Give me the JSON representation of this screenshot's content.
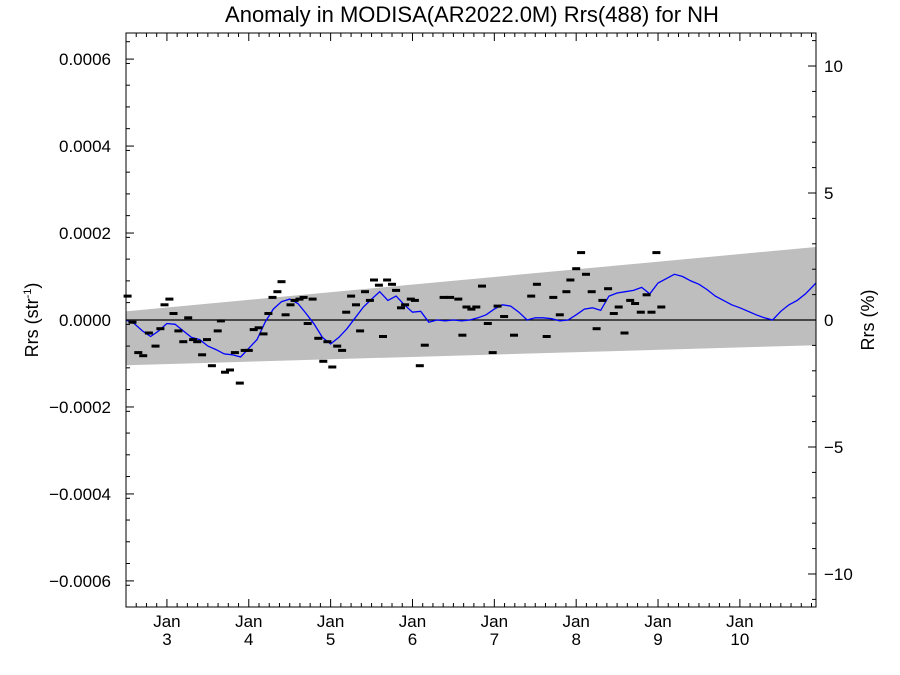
{
  "chart_data": {
    "type": "scatter",
    "title": "Anomaly in MODISA(AR2022.0M) Rrs(488) for NH",
    "ylabel": "Rrs (str",
    "ylabel_sup": "-1",
    "ylabel_close": ")",
    "y2label": "Rrs (%)",
    "xlim": [
      2.5,
      10.93
    ],
    "ylim": [
      -0.00066,
      0.00066
    ],
    "y2lim": [
      -11.3,
      11.3
    ],
    "grid": false,
    "yticks": [
      {
        "v": 0.0006,
        "label": "0.0006"
      },
      {
        "v": 0.0004,
        "label": "0.0004"
      },
      {
        "v": 0.0002,
        "label": "0.0002"
      },
      {
        "v": 0.0,
        "label": "0.0000"
      },
      {
        "v": -0.0002,
        "label": "−0.0002"
      },
      {
        "v": -0.0004,
        "label": "−0.0004"
      },
      {
        "v": -0.0006,
        "label": "−0.0006"
      }
    ],
    "y2ticks": [
      {
        "v": 10,
        "label": "10"
      },
      {
        "v": 5,
        "label": "5"
      },
      {
        "v": 0,
        "label": "0"
      },
      {
        "v": -5,
        "label": "−5"
      },
      {
        "v": -10,
        "label": "−10"
      }
    ],
    "xticks": [
      {
        "v": 3,
        "top": "Jan",
        "bottom": "3"
      },
      {
        "v": 4,
        "top": "Jan",
        "bottom": "4"
      },
      {
        "v": 5,
        "top": "Jan",
        "bottom": "5"
      },
      {
        "v": 6,
        "top": "Jan",
        "bottom": "6"
      },
      {
        "v": 7,
        "top": "Jan",
        "bottom": "7"
      },
      {
        "v": 8,
        "top": "Jan",
        "bottom": "8"
      },
      {
        "v": 9,
        "top": "Jan",
        "bottom": "9"
      },
      {
        "v": 10,
        "top": "Jan",
        "bottom": "10"
      }
    ],
    "band": {
      "x": [
        2.5,
        10.93
      ],
      "upper": [
        2e-05,
        0.000168
      ],
      "lower": [
        -0.000104,
        -5.8e-05
      ],
      "color": "#bebebe"
    },
    "series": [
      {
        "style": "points",
        "color": "#000000",
        "points": [
          [
            2.52,
            5.5e-05
          ],
          [
            2.58,
            -5e-06
          ],
          [
            2.65,
            -7.5e-05
          ],
          [
            2.71,
            -8.2e-05
          ],
          [
            2.78,
            -3e-05
          ],
          [
            2.86,
            -6e-05
          ],
          [
            2.92,
            -2e-05
          ],
          [
            2.97,
            3.5e-05
          ],
          [
            3.03,
            4.8e-05
          ],
          [
            3.08,
            1.5e-05
          ],
          [
            3.14,
            -2.5e-05
          ],
          [
            3.2,
            -5e-05
          ],
          [
            3.26,
            5e-06
          ],
          [
            3.32,
            -4.5e-05
          ],
          [
            3.37,
            -5e-05
          ],
          [
            3.43,
            -8e-05
          ],
          [
            3.49,
            -4.5e-05
          ],
          [
            3.55,
            -0.000105
          ],
          [
            3.62,
            -2.5e-05
          ],
          [
            3.66,
            -2e-06
          ],
          [
            3.71,
            -0.00012
          ],
          [
            3.77,
            -0.000115
          ],
          [
            3.83,
            -7.5e-05
          ],
          [
            3.89,
            -0.000145
          ],
          [
            3.95,
            -7e-05
          ],
          [
            4.0,
            -7e-05
          ],
          [
            4.06,
            -2.2e-05
          ],
          [
            4.12,
            -1.8e-05
          ],
          [
            4.18,
            -3.2e-05
          ],
          [
            4.24,
            1.5e-05
          ],
          [
            4.29,
            5.2e-05
          ],
          [
            4.35,
            6.5e-05
          ],
          [
            4.4,
            8.8e-05
          ],
          [
            4.45,
            1.2e-05
          ],
          [
            4.51,
            3.5e-05
          ],
          [
            4.56,
            4.5e-05
          ],
          [
            4.62,
            4.8e-05
          ],
          [
            4.67,
            5.2e-05
          ],
          [
            4.72,
            -8e-06
          ],
          [
            4.78,
            4.8e-05
          ],
          [
            4.85,
            -4.2e-05
          ],
          [
            4.91,
            -9.5e-05
          ],
          [
            4.96,
            -5e-05
          ],
          [
            5.02,
            -0.000108
          ],
          [
            5.08,
            -6e-05
          ],
          [
            5.14,
            -7e-05
          ],
          [
            5.19,
            1.8e-05
          ],
          [
            5.25,
            5.5e-05
          ],
          [
            5.31,
            3.5e-05
          ],
          [
            5.36,
            -2.5e-05
          ],
          [
            5.42,
            6.5e-05
          ],
          [
            5.48,
            4.5e-05
          ],
          [
            5.53,
            9.2e-05
          ],
          [
            5.59,
            8e-05
          ],
          [
            5.64,
            -3.8e-05
          ],
          [
            5.69,
            9.2e-05
          ],
          [
            5.75,
            8.2e-05
          ],
          [
            5.8,
            6.8e-05
          ],
          [
            5.86,
            2.8e-05
          ],
          [
            5.91,
            3.5e-05
          ],
          [
            5.98,
            4.8e-05
          ],
          [
            6.03,
            4.5e-05
          ],
          [
            6.09,
            -0.000105
          ],
          [
            6.15,
            -5.8e-05
          ],
          [
            6.38,
            5.2e-05
          ],
          [
            6.46,
            5.2e-05
          ],
          [
            6.56,
            4.8e-05
          ],
          [
            6.61,
            -3.5e-05
          ],
          [
            6.66,
            3e-05
          ],
          [
            6.72,
            2.5e-05
          ],
          [
            6.78,
            3e-05
          ],
          [
            6.85,
            7.8e-05
          ],
          [
            6.92,
            -8e-06
          ],
          [
            6.98,
            -7.5e-05
          ],
          [
            7.04,
            3.2e-05
          ],
          [
            7.12,
            8e-06
          ],
          [
            7.24,
            -3.5e-05
          ],
          [
            7.45,
            5.5e-05
          ],
          [
            7.52,
            8.2e-05
          ],
          [
            7.64,
            -3.8e-05
          ],
          [
            7.72,
            5.2e-05
          ],
          [
            7.8,
            1.2e-05
          ],
          [
            7.88,
            6.5e-05
          ],
          [
            7.93,
            9.2e-05
          ],
          [
            8.0,
            0.000118
          ],
          [
            8.06,
            0.000155
          ],
          [
            8.12,
            0.000105
          ],
          [
            8.19,
            6.5e-05
          ],
          [
            8.25,
            -2e-05
          ],
          [
            8.32,
            4.5e-05
          ],
          [
            8.39,
            7.2e-05
          ],
          [
            8.46,
            1.5e-05
          ],
          [
            8.52,
            3e-05
          ],
          [
            8.59,
            -3e-05
          ],
          [
            8.66,
            4.5e-05
          ],
          [
            8.72,
            3.8e-05
          ],
          [
            8.79,
            1.8e-05
          ],
          [
            8.86,
            5.8e-05
          ],
          [
            8.92,
            1.8e-05
          ],
          [
            8.98,
            0.000155
          ],
          [
            9.04,
            3e-05
          ]
        ]
      },
      {
        "style": "line",
        "color": "#0000ff",
        "points": [
          [
            2.5,
            0.0
          ],
          [
            2.6,
            -8e-06
          ],
          [
            2.7,
            -2.5e-05
          ],
          [
            2.8,
            -3.8e-05
          ],
          [
            2.9,
            -2.5e-05
          ],
          [
            3.0,
            -8e-06
          ],
          [
            3.1,
            -1e-05
          ],
          [
            3.2,
            -2.5e-05
          ],
          [
            3.3,
            -4e-05
          ],
          [
            3.4,
            -4.5e-05
          ],
          [
            3.5,
            -6e-05
          ],
          [
            3.6,
            -6.8e-05
          ],
          [
            3.7,
            -7.8e-05
          ],
          [
            3.8,
            -8e-05
          ],
          [
            3.9,
            -8.5e-05
          ],
          [
            4.0,
            -6.5e-05
          ],
          [
            4.1,
            -4.5e-05
          ],
          [
            4.2,
            -5e-06
          ],
          [
            4.3,
            2.5e-05
          ],
          [
            4.4,
            4.2e-05
          ],
          [
            4.5,
            4.8e-05
          ],
          [
            4.6,
            3.8e-05
          ],
          [
            4.7,
            1.5e-05
          ],
          [
            4.8,
            -1e-05
          ],
          [
            4.9,
            -4e-05
          ],
          [
            5.0,
            -5.5e-05
          ],
          [
            5.1,
            -4e-05
          ],
          [
            5.2,
            -2e-05
          ],
          [
            5.3,
            5e-06
          ],
          [
            5.4,
            3e-05
          ],
          [
            5.5,
            4.8e-05
          ],
          [
            5.6,
            6.5e-05
          ],
          [
            5.7,
            4.5e-05
          ],
          [
            5.8,
            5.5e-05
          ],
          [
            5.9,
            3.5e-05
          ],
          [
            6.0,
            1.8e-05
          ],
          [
            6.1,
            2e-05
          ],
          [
            6.2,
            -5e-06
          ],
          [
            6.3,
            0.0
          ],
          [
            6.4,
            -2e-06
          ],
          [
            6.5,
            0.0
          ],
          [
            6.6,
            -2e-06
          ],
          [
            6.7,
            0.0
          ],
          [
            6.8,
            5e-06
          ],
          [
            6.9,
            1.2e-05
          ],
          [
            7.0,
            2.5e-05
          ],
          [
            7.1,
            3.5e-05
          ],
          [
            7.2,
            3.2e-05
          ],
          [
            7.3,
            1.8e-05
          ],
          [
            7.4,
            0.0
          ],
          [
            7.5,
            5e-06
          ],
          [
            7.6,
            5e-06
          ],
          [
            7.7,
            3e-06
          ],
          [
            7.8,
            -2e-06
          ],
          [
            7.9,
            0.0
          ],
          [
            8.0,
            1.2e-05
          ],
          [
            8.1,
            2.5e-05
          ],
          [
            8.2,
            2.8e-05
          ],
          [
            8.3,
            2.2e-05
          ],
          [
            8.4,
            5.5e-05
          ],
          [
            8.5,
            6.2e-05
          ],
          [
            8.6,
            6.5e-05
          ],
          [
            8.7,
            6.8e-05
          ],
          [
            8.8,
            7.5e-05
          ],
          [
            8.9,
            6e-05
          ],
          [
            9.0,
            8.5e-05
          ],
          [
            9.1,
            9.5e-05
          ],
          [
            9.2,
            0.000105
          ],
          [
            9.3,
            0.0001
          ],
          [
            9.4,
            9e-05
          ],
          [
            9.5,
            8.2e-05
          ],
          [
            9.6,
            7e-05
          ],
          [
            9.7,
            5.5e-05
          ],
          [
            9.8,
            4.5e-05
          ],
          [
            9.9,
            3.5e-05
          ],
          [
            10.0,
            2.8e-05
          ],
          [
            10.1,
            2e-05
          ],
          [
            10.2,
            1.2e-05
          ],
          [
            10.3,
            5e-06
          ],
          [
            10.4,
            0.0
          ],
          [
            10.5,
            2e-05
          ],
          [
            10.6,
            3.5e-05
          ],
          [
            10.7,
            4.5e-05
          ],
          [
            10.8,
            6e-05
          ],
          [
            10.93,
            8.5e-05
          ]
        ]
      }
    ]
  }
}
